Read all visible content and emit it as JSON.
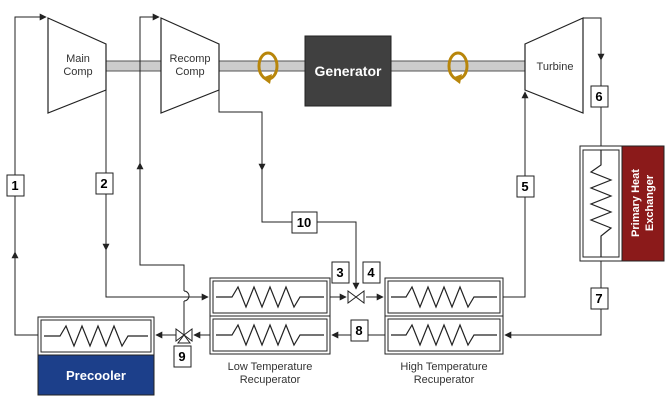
{
  "components": {
    "main_comp": [
      "Main",
      "Comp"
    ],
    "recomp_comp": [
      "Recomp",
      "Comp"
    ],
    "generator": "Generator",
    "turbine": "Turbine",
    "primary_hx": [
      "Primary Heat",
      "Exchanger"
    ],
    "precooler": "Precooler",
    "ltr": [
      "Low Temperature",
      "Recuperator"
    ],
    "htr": [
      "High Temperature",
      "Recuperator"
    ]
  },
  "state_points": [
    "1",
    "2",
    "3",
    "4",
    "5",
    "6",
    "7",
    "8",
    "9",
    "10"
  ],
  "colors": {
    "generator_fill": "#404040",
    "primary_hx_fill": "#8b1a1a",
    "precooler_fill": "#1c3f8a",
    "shaft_fill": "#cccccc",
    "rotation_arrow": "#b8860b",
    "line": "#222222"
  }
}
